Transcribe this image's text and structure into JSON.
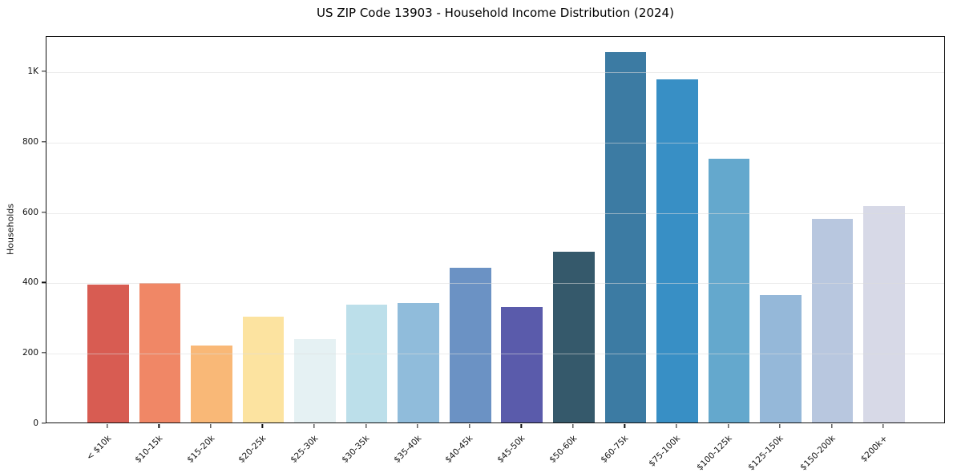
{
  "chart_data": {
    "type": "bar",
    "title": "US ZIP Code 13903 - Household Income Distribution (2024)",
    "xlabel": "",
    "ylabel": "Households",
    "categories": [
      "< $10k",
      "$10-15k",
      "$15-20k",
      "$20-25k",
      "$25-30k",
      "$30-35k",
      "$35-40k",
      "$40-45k",
      "$45-50k",
      "$50-60k",
      "$60-75k",
      "$75-100k",
      "$100-125k",
      "$125-150k",
      "$150-200k",
      "$200k+"
    ],
    "values": [
      392,
      397,
      219,
      301,
      236,
      335,
      339,
      440,
      328,
      486,
      1052,
      975,
      749,
      362,
      578,
      616
    ],
    "bar_colors": [
      "#d85c52",
      "#f08766",
      "#f9b877",
      "#fce3a0",
      "#e5f1f3",
      "#bcdfea",
      "#90bcdb",
      "#6b92c4",
      "#5a5bab",
      "#35596b",
      "#3c7ba3",
      "#388fc5",
      "#64a8cd",
      "#95b8d9",
      "#b8c7df",
      "#d7d9e7"
    ],
    "yticks": [
      0,
      200,
      400,
      600,
      800,
      1000
    ],
    "ytick_labels": [
      "0",
      "200",
      "400",
      "600",
      "800",
      "1K"
    ],
    "ylim": [
      0,
      1100
    ],
    "grid": "horizontal",
    "legend": "none",
    "background_color": "#ffffff",
    "spine_color": "#111111",
    "gridline_color": "#e8e8e8"
  }
}
